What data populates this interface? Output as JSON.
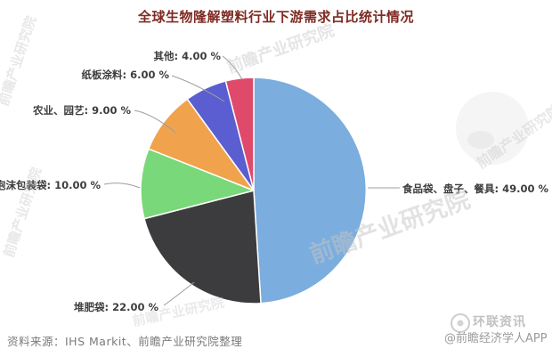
{
  "title": {
    "text": "全球生物隆解塑料行业下游需求占比统计情况",
    "color": "#7e2a23"
  },
  "chart_data": {
    "type": "pie",
    "title": "全球生物隆解塑料行业下游需求占比统计情况",
    "start_angle_deg": 0,
    "direction": "clockwise",
    "legend": "none",
    "labels": "outside-with-leader-lines",
    "unit": "%",
    "segments": [
      {
        "label": "食品袋、盘子、餐具",
        "value": 49.0,
        "display": "食品袋、盘子、餐具: 49.00 %",
        "color": "#7badde"
      },
      {
        "label": "堆肥袋",
        "value": 22.0,
        "display": "堆肥袋: 22.00 %",
        "color": "#3c3c3e"
      },
      {
        "label": "泡沫包装袋",
        "value": 10.0,
        "display": "泡沫包装袋: 10.00 %",
        "color": "#79d879"
      },
      {
        "label": "农业、园艺",
        "value": 9.0,
        "display": "农业、园艺: 9.00 %",
        "color": "#f1a24d"
      },
      {
        "label": "纸板涂料",
        "value": 6.0,
        "display": "纸板涂料: 6.00 %",
        "color": "#5a5ed0"
      },
      {
        "label": "其他",
        "value": 4.0,
        "display": "其他: 4.00 %",
        "color": "#df4a6b"
      }
    ]
  },
  "source": {
    "text": "资料来源：IHS Markit、前瞻产业研究院整理"
  },
  "watermarks": {
    "diagonal": "前瞻产业研究院",
    "brand": "环联资讯",
    "credit": "@前瞻经济学人APP"
  }
}
